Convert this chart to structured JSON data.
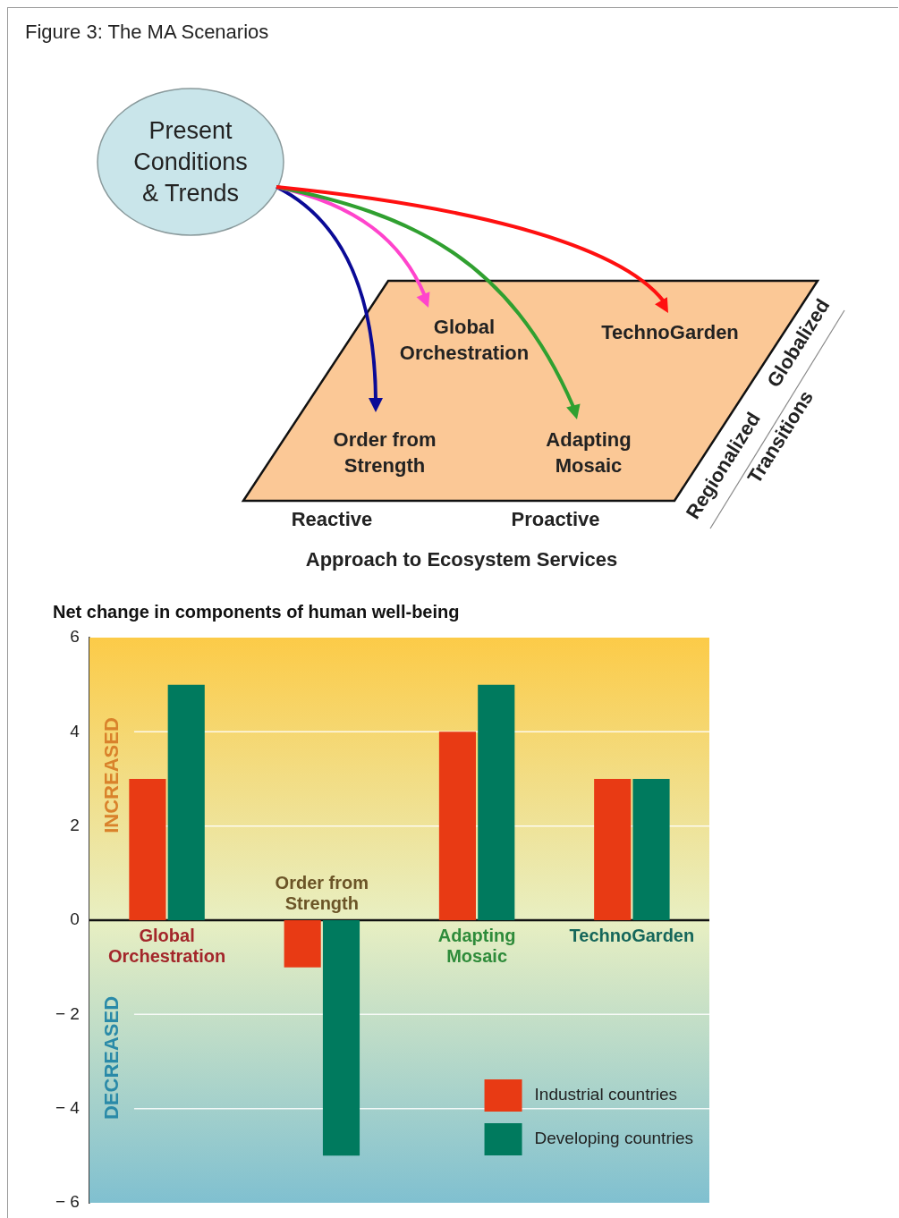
{
  "chart_data": [
    {
      "type": "other",
      "title": "Figure 3: The MA Scenarios",
      "annotations": [
        "Present Conditions & Trends",
        "Global Orchestration",
        "TechnoGarden",
        "Order from Strength",
        "Adapting Mosaic",
        "Reactive",
        "Proactive",
        "Approach to Ecosystem Services",
        "Globalized",
        "Regionalized",
        "Transitions"
      ]
    },
    {
      "type": "bar",
      "title": "Net change in components of human well-being",
      "categories": [
        "Global Orchestration",
        "Order from Strength",
        "Adapting Mosaic",
        "TechnoGarden"
      ],
      "series": [
        {
          "name": "Industrial countries",
          "color": "#e83a14",
          "values": [
            3,
            -1,
            4,
            3
          ]
        },
        {
          "name": "Developing countries",
          "color": "#007a5e",
          "values": [
            5,
            -5,
            5,
            3
          ]
        }
      ],
      "ylim": [
        -6,
        6
      ],
      "yticks": [
        -6,
        -4,
        -2,
        0,
        2,
        4,
        6
      ],
      "grid": "y",
      "legend": "bottom right",
      "annotations": [
        "INCREASED",
        "DECREASED"
      ]
    }
  ]
}
